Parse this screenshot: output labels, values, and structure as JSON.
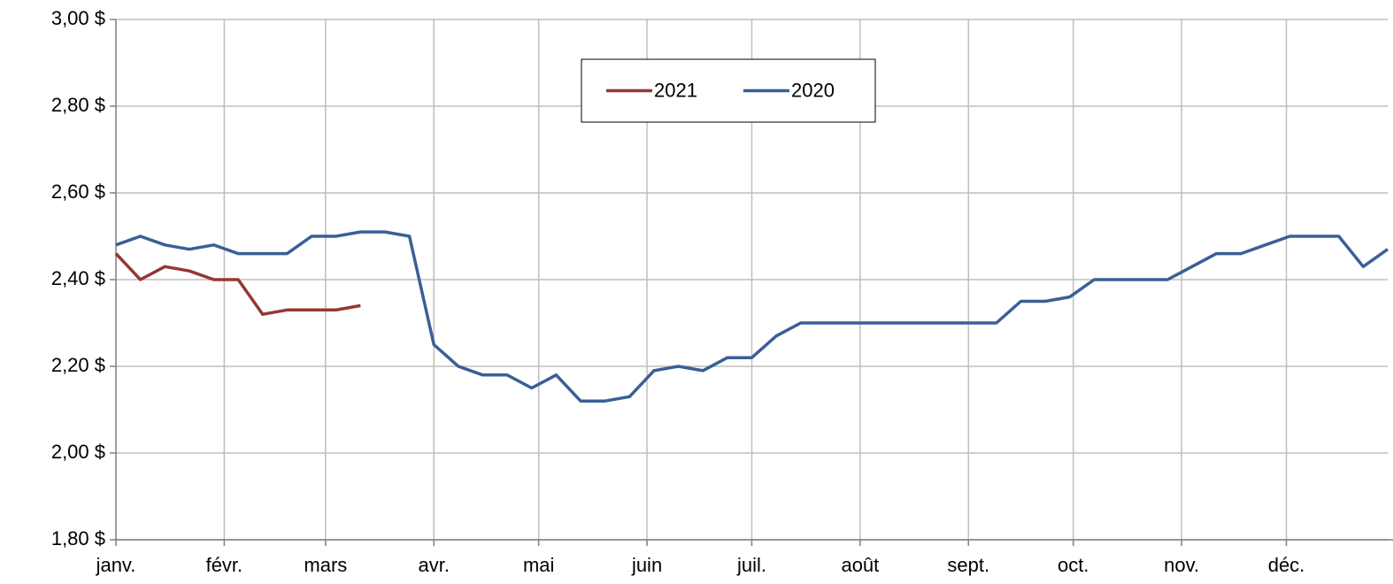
{
  "chart_data": {
    "type": "line",
    "x": [
      0,
      7,
      14,
      21,
      28,
      35,
      42,
      49,
      56,
      63,
      70,
      77,
      84,
      91,
      98,
      105,
      112,
      119,
      126,
      133,
      140,
      147,
      154,
      161,
      168,
      175,
      182,
      189,
      196,
      203,
      210,
      217,
      224,
      231,
      238,
      245,
      252,
      259,
      266,
      273,
      280,
      287,
      294,
      301,
      308,
      315,
      322,
      329,
      336,
      343,
      350,
      357,
      364
    ],
    "xlim": [
      0,
      364
    ],
    "xticks": [
      {
        "value": 0,
        "label": "janv."
      },
      {
        "value": 31,
        "label": "févr."
      },
      {
        "value": 60,
        "label": "mars"
      },
      {
        "value": 91,
        "label": "avr."
      },
      {
        "value": 121,
        "label": "mai"
      },
      {
        "value": 152,
        "label": "juin"
      },
      {
        "value": 182,
        "label": "juil."
      },
      {
        "value": 213,
        "label": "août"
      },
      {
        "value": 244,
        "label": "sept."
      },
      {
        "value": 274,
        "label": "oct."
      },
      {
        "value": 305,
        "label": "nov."
      },
      {
        "value": 335,
        "label": "déc."
      }
    ],
    "ylim": [
      1.8,
      3.0
    ],
    "yticks": [
      {
        "value": 1.8,
        "label": "1,80 $"
      },
      {
        "value": 2.0,
        "label": "2,00 $"
      },
      {
        "value": 2.2,
        "label": "2,20 $"
      },
      {
        "value": 2.4,
        "label": "2,40 $"
      },
      {
        "value": 2.6,
        "label": "2,60 $"
      },
      {
        "value": 2.8,
        "label": "2,80 $"
      },
      {
        "value": 3.0,
        "label": "3,00 $"
      }
    ],
    "grid": true,
    "legend": "top",
    "series": [
      {
        "name": "2021",
        "color": "#953735",
        "values": [
          2.46,
          2.4,
          2.43,
          2.42,
          2.4,
          2.4,
          2.32,
          2.33,
          2.33,
          2.33,
          2.34,
          null,
          null,
          null,
          null,
          null,
          null,
          null,
          null,
          null,
          null,
          null,
          null,
          null,
          null,
          null,
          null,
          null,
          null,
          null,
          null,
          null,
          null,
          null,
          null,
          null,
          null,
          null,
          null,
          null,
          null,
          null,
          null,
          null,
          null,
          null,
          null,
          null,
          null,
          null,
          null,
          null,
          null
        ]
      },
      {
        "name": "2020",
        "color": "#3a5f96",
        "values": [
          2.48,
          2.5,
          2.48,
          2.47,
          2.48,
          2.46,
          2.46,
          2.46,
          2.5,
          2.5,
          2.51,
          2.51,
          2.5,
          2.25,
          2.2,
          2.18,
          2.18,
          2.15,
          2.18,
          2.12,
          2.12,
          2.13,
          2.19,
          2.2,
          2.19,
          2.22,
          2.22,
          2.27,
          2.3,
          2.3,
          2.3,
          2.3,
          2.3,
          2.3,
          2.3,
          2.3,
          2.3,
          2.35,
          2.35,
          2.36,
          2.4,
          2.4,
          2.4,
          2.4,
          2.43,
          2.46,
          2.46,
          2.48,
          2.5,
          2.5,
          2.5,
          2.43,
          2.47
        ]
      }
    ]
  }
}
